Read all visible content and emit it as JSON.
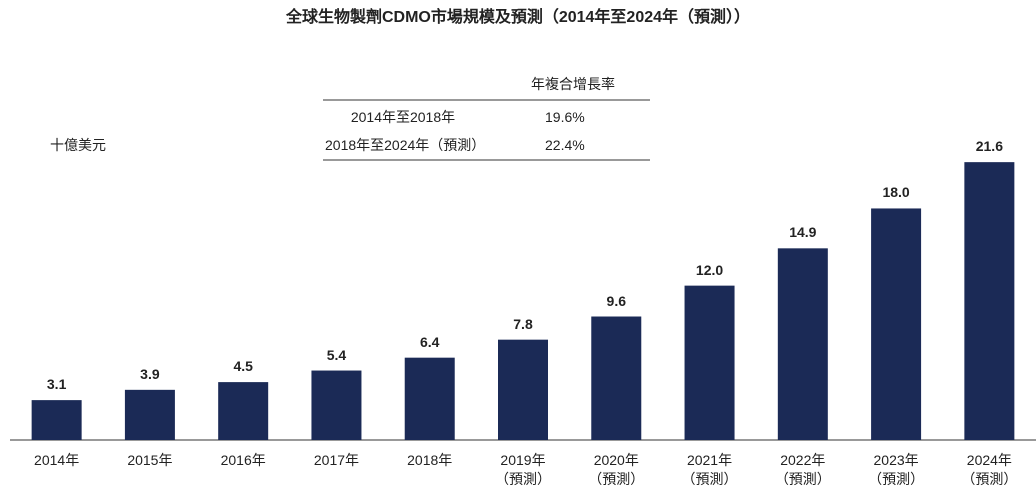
{
  "chart_data": {
    "type": "bar",
    "title": "全球生物製劑CDMO市場規模及預測（2014年至2024年（預測））",
    "y_label": "十億美元",
    "categories": [
      "2014年",
      "2015年",
      "2016年",
      "2017年",
      "2018年",
      "2019年\n（預測）",
      "2020年\n（預測）",
      "2021年\n（預測）",
      "2022年\n（預測）",
      "2023年\n（預測）",
      "2024年\n（預測）"
    ],
    "values": [
      3.1,
      3.9,
      4.5,
      5.4,
      6.4,
      7.8,
      9.6,
      12.0,
      14.9,
      18.0,
      21.6
    ],
    "value_labels": [
      "3.1",
      "3.9",
      "4.5",
      "5.4",
      "6.4",
      "7.8",
      "9.6",
      "12.0",
      "14.9",
      "18.0",
      "21.6"
    ],
    "color": "#1b2a56",
    "ylim": [
      0,
      22
    ],
    "cagr_table": {
      "header": "年複合增長率",
      "rows": [
        [
          "2014年至2018年",
          "19.6%"
        ],
        [
          "2018年至2024年（預測）",
          "22.4%"
        ]
      ]
    }
  }
}
